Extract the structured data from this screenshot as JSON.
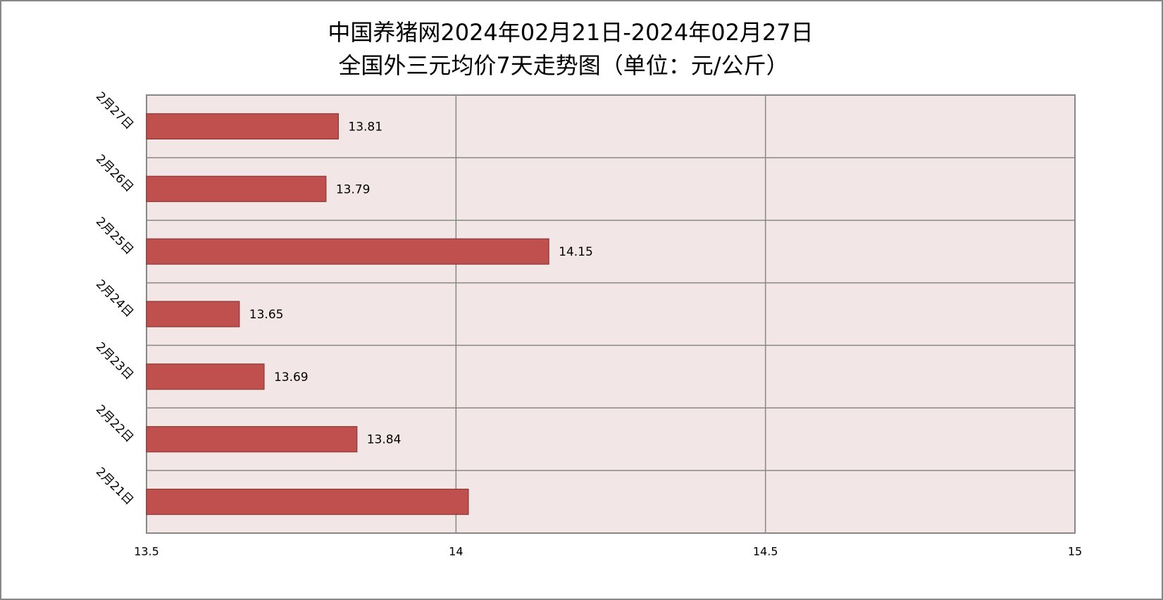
{
  "chart_data": {
    "type": "barh",
    "title": [
      "中国养猪网2024年02月21日-2024年02月27日",
      "全国外三元均价7天走势图（单位：元/公斤）"
    ],
    "categories": [
      "2月21日",
      "2月22日",
      "2月23日",
      "2月24日",
      "2月25日",
      "2月26日",
      "2月27日"
    ],
    "values": [
      14.02,
      13.84,
      13.69,
      13.65,
      14.15,
      13.79,
      13.81
    ],
    "value_labels": [
      null,
      "13.84",
      "13.69",
      "13.65",
      "14.15",
      "13.79",
      "13.81"
    ],
    "color": "#c0504d",
    "xlim": [
      13.5,
      15
    ],
    "xticks": [
      13.5,
      14,
      14.5,
      15
    ],
    "grid": true
  }
}
